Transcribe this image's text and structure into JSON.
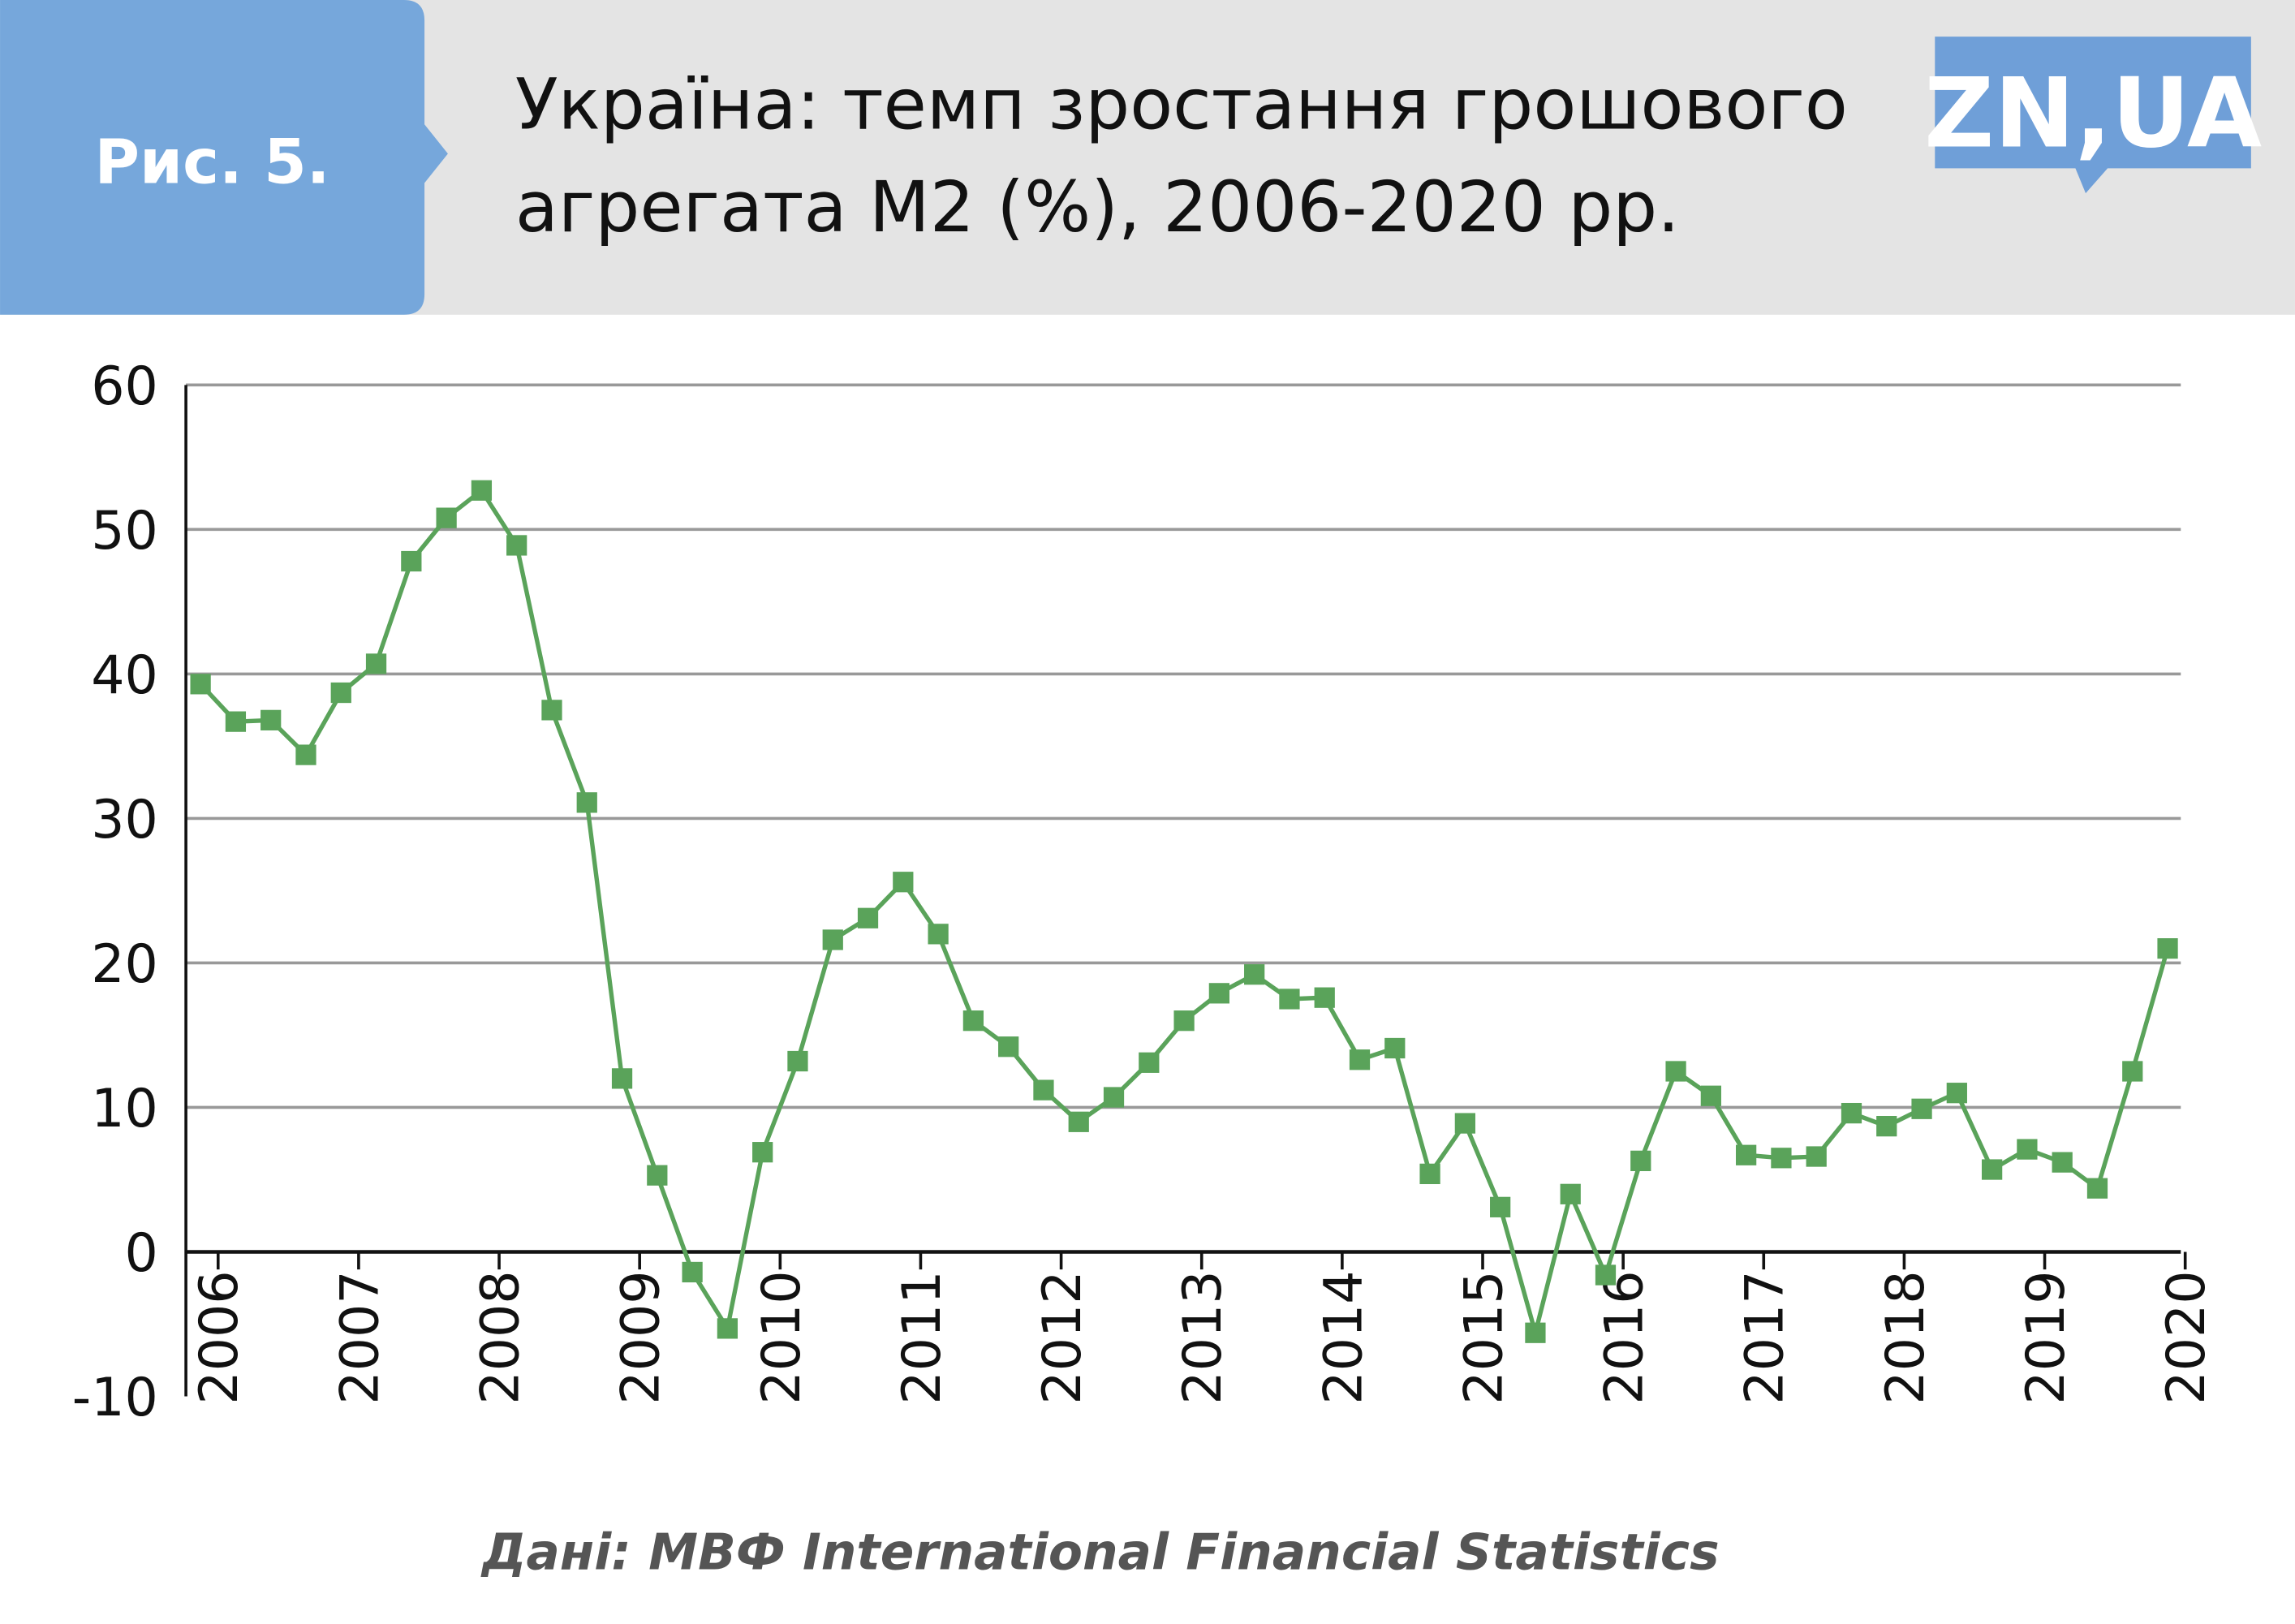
{
  "figure_label": "Рис. 5.",
  "logo": "ZN,UA",
  "source": "Дані: МВФ International Financial Statistics",
  "chart_data": {
    "type": "line",
    "title": [
      "Україна: темп зростання грошового",
      "агрегата М2 (%), 2006-2020 рр."
    ],
    "categories": [
      "2006",
      null,
      null,
      null,
      "2007",
      null,
      null,
      null,
      "2008",
      null,
      null,
      null,
      "2009",
      null,
      null,
      null,
      "2010",
      null,
      null,
      null,
      "2011",
      null,
      null,
      null,
      "2012",
      null,
      null,
      null,
      "2013",
      null,
      null,
      null,
      "2014",
      null,
      null,
      null,
      "2015",
      null,
      null,
      null,
      "2016",
      null,
      null,
      null,
      "2017",
      null,
      null,
      null,
      "2018",
      null,
      null,
      null,
      "2019",
      null,
      null,
      null,
      "2020"
    ],
    "series": [
      {
        "name": "M2",
        "color": "#5aa35a",
        "values": [
          39.3,
          36.7,
          36.8,
          34.4,
          38.7,
          40.7,
          47.8,
          50.8,
          52.7,
          48.9,
          37.5,
          31.1,
          12.0,
          5.3,
          -1.4,
          -5.3,
          6.9,
          13.2,
          21.6,
          23.1,
          25.6,
          22.0,
          16.0,
          14.2,
          11.2,
          9.0,
          10.7,
          13.1,
          16.0,
          17.9,
          19.2,
          17.5,
          17.6,
          13.3,
          14.1,
          5.4,
          8.9,
          3.1,
          -5.6,
          4.0,
          -1.6,
          6.3,
          12.5,
          10.8,
          6.7,
          6.5,
          6.6,
          9.6,
          8.7,
          9.9,
          11.0,
          5.7,
          7.1,
          6.2,
          4.4,
          12.5,
          21.0
        ]
      }
    ],
    "ylim": [
      -10,
      60
    ],
    "yticks": [
      -10,
      0,
      10,
      20,
      30,
      40,
      50,
      60
    ],
    "grid": true
  }
}
